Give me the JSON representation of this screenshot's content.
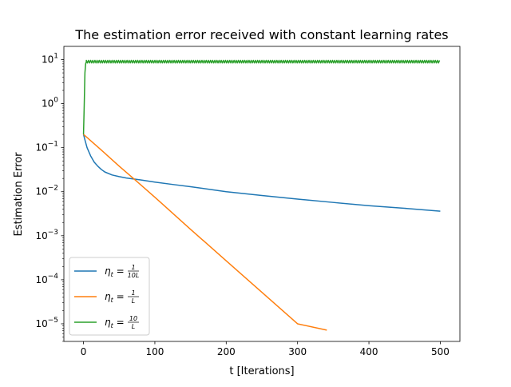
{
  "chart_data": {
    "type": "line",
    "title": "The estimation error received with constant learning rates",
    "xlabel": "t [Iterations]",
    "ylabel": "Estimation Error",
    "xlim": [
      -27.5,
      527.5
    ],
    "ylim_log10": [
      -5.4,
      1.3
    ],
    "yscale": "log",
    "xticks": [
      0,
      100,
      200,
      300,
      400,
      500
    ],
    "xtick_labels": [
      "0",
      "100",
      "200",
      "300",
      "400",
      "500"
    ],
    "yticks_log10": [
      -5,
      -4,
      -3,
      -2,
      -1,
      0,
      1
    ],
    "grid": false,
    "legend_position": "lower-left",
    "series": [
      {
        "name": "η_t = 1/(10L)",
        "legend": {
          "eta": "η",
          "sub": "t",
          "eq": " = ",
          "num": "1",
          "den": "10L"
        },
        "color": "#1f77b4",
        "x": [
          0,
          2,
          5,
          10,
          15,
          20,
          25,
          30,
          40,
          50,
          60,
          80,
          100,
          125,
          150,
          200,
          250,
          300,
          350,
          400,
          450,
          500
        ],
        "y": [
          0.2,
          0.15,
          0.1,
          0.065,
          0.047,
          0.038,
          0.032,
          0.028,
          0.024,
          0.022,
          0.0205,
          0.0185,
          0.0165,
          0.0146,
          0.013,
          0.01,
          0.0082,
          0.0068,
          0.0057,
          0.0048,
          0.0042,
          0.0036
        ]
      },
      {
        "name": "η_t = 1/L",
        "legend": {
          "eta": "η",
          "sub": "t",
          "eq": " = ",
          "num": "1",
          "den": "L"
        },
        "color": "#ff7f0e",
        "x": [
          0,
          25,
          50,
          75,
          100,
          150,
          200,
          250,
          300,
          341
        ],
        "y": [
          0.2,
          0.088,
          0.038,
          0.017,
          0.0075,
          0.0014,
          0.00027,
          5.2e-05,
          1e-05,
          7.2e-06
        ]
      },
      {
        "name": "η_t = 10/L",
        "legend": {
          "eta": "η",
          "sub": "t",
          "eq": " = ",
          "num": "10",
          "den": "L"
        },
        "color": "#2ca02c",
        "oscillating": true,
        "x": [
          0,
          1,
          2,
          3,
          4,
          500
        ],
        "y": [
          0.2,
          0.9,
          5.0,
          8.0,
          9.0,
          9.0
        ],
        "band": [
          8.4,
          9.6
        ]
      }
    ]
  }
}
